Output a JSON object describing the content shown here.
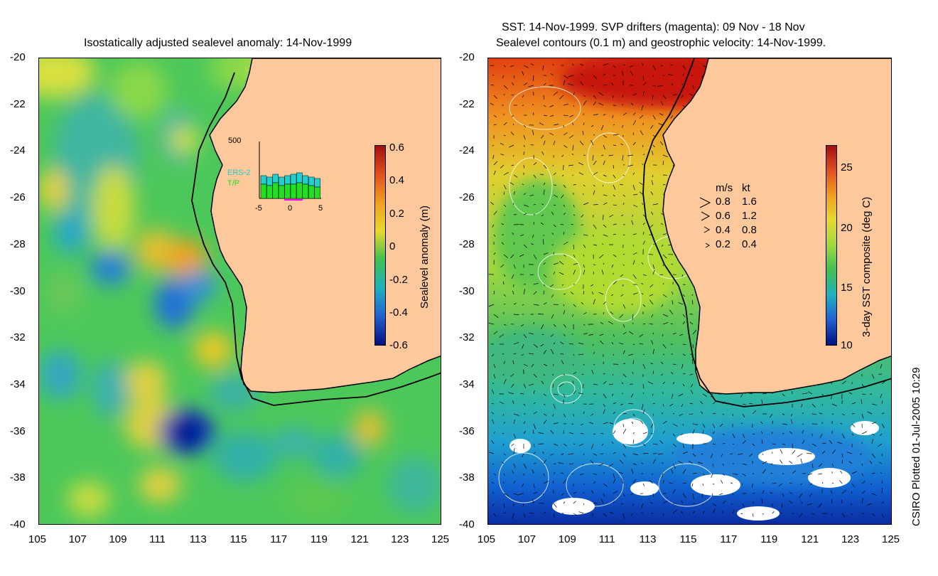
{
  "left_panel": {
    "title": "Isostatically adjusted sealevel anomaly: 14-Nov-1999",
    "lat_ticks": [
      "-20",
      "-22",
      "-24",
      "-26",
      "-28",
      "-30",
      "-32",
      "-34",
      "-36",
      "-38",
      "-40"
    ],
    "lon_ticks": [
      "105",
      "107",
      "109",
      "111",
      "113",
      "115",
      "117",
      "119",
      "121",
      "123",
      "125"
    ],
    "colorbar": {
      "label": "Sealevel anomaly (m)",
      "ticks": [
        "0.6",
        "0.4",
        "0.2",
        "0",
        "-0.2",
        "-0.4",
        "-0.6"
      ]
    },
    "inset": {
      "ymax": "500",
      "series": [
        "ERS-2",
        "T/P"
      ],
      "xticks": [
        "-5",
        "0",
        "5"
      ],
      "ers2_color": "#20d0d0",
      "tp_color": "#20e020"
    }
  },
  "right_panel": {
    "title_line1": "SST: 14-Nov-1999. SVP drifters (magenta): 09 Nov - 18 Nov",
    "title_line2": "Sealevel contours (0.1 m) and geostrophic velocity: 14-Nov-1999.",
    "lat_ticks": [
      "-20",
      "-22",
      "-24",
      "-26",
      "-28",
      "-30",
      "-32",
      "-34",
      "-36",
      "-38",
      "-40"
    ],
    "lon_ticks": [
      "105",
      "107",
      "109",
      "111",
      "113",
      "115",
      "117",
      "119",
      "121",
      "123",
      "125"
    ],
    "colorbar": {
      "label": "3-day SST composite (deg C)",
      "ticks": [
        "25",
        "20",
        "15",
        "10"
      ]
    },
    "velocity_legend": {
      "header_ms": "m/s",
      "header_kt": "kt",
      "rows": [
        {
          "ms": "0.8",
          "kt": "1.6"
        },
        {
          "ms": "0.6",
          "kt": "1.2"
        },
        {
          "ms": "0.4",
          "kt": "0.8"
        },
        {
          "ms": "0.2",
          "kt": "0.4"
        }
      ]
    }
  },
  "footer": {
    "credit": "CSIRO Plotted 01-Jul-2005 10:29"
  },
  "colors": {
    "land": "#fcc89c",
    "coast": "#000000"
  }
}
